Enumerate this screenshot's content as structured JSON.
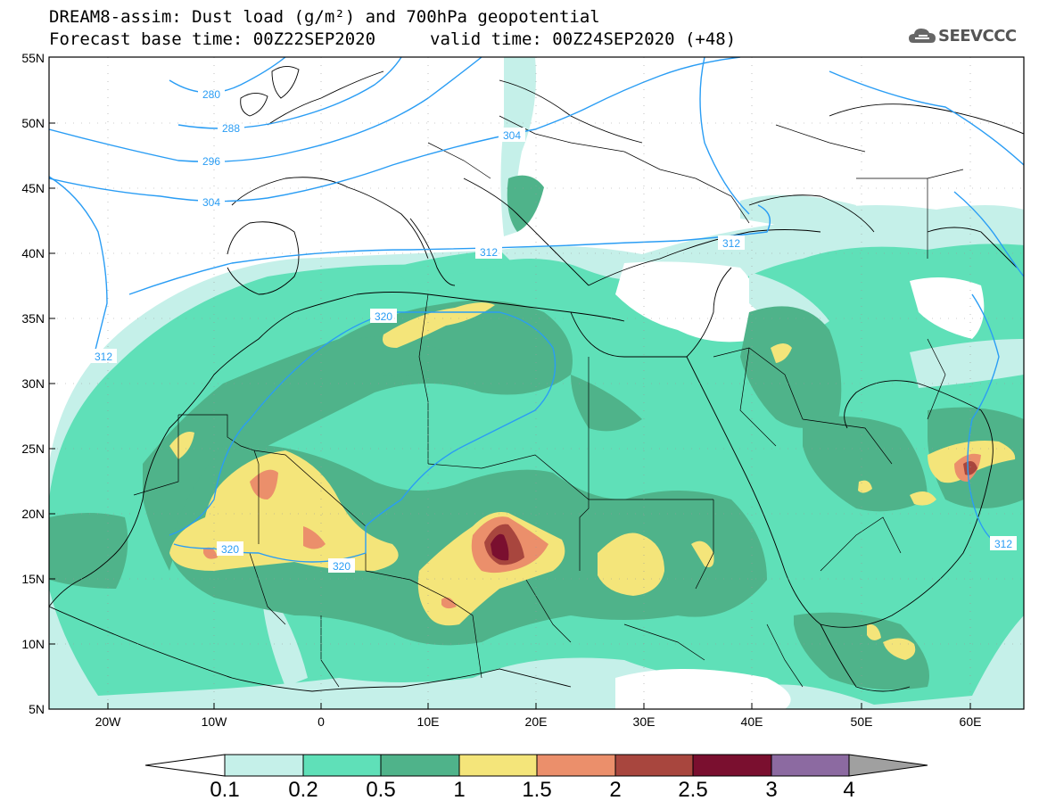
{
  "title": {
    "line1": "DREAM8-assim: Dust load (g/m²) and 700hPa geopotential",
    "line2_left": "Forecast base time: 00Z22SEP2020",
    "line2_right": "valid time: 00Z24SEP2020 (+48)"
  },
  "logo": {
    "text": "SEEVCCC",
    "icon": "cloud-logo-icon"
  },
  "axes": {
    "lat_labels": [
      "55N",
      "50N",
      "45N",
      "40N",
      "35N",
      "30N",
      "25N",
      "20N",
      "15N",
      "10N",
      "5N"
    ],
    "lon_labels": [
      "20W",
      "10W",
      "0",
      "10E",
      "20E",
      "30E",
      "40E",
      "50E",
      "60E"
    ],
    "lat_range": [
      5,
      55
    ],
    "lon_range": [
      -25,
      65
    ]
  },
  "contour_labels": [
    "280",
    "288",
    "296",
    "304",
    "304",
    "312",
    "312",
    "312",
    "320",
    "320",
    "320",
    "312"
  ],
  "colorbar": {
    "ticks": [
      "0.1",
      "0.2",
      "0.5",
      "1",
      "1.5",
      "2",
      "2.5",
      "3",
      "4"
    ],
    "colors": [
      "#ffffff",
      "#c5f0e9",
      "#5fe0b8",
      "#4fb38a",
      "#f4e57a",
      "#eb8f6b",
      "#a8463e",
      "#7a0f2f",
      "#8c6aa1",
      "#a0a0a0"
    ]
  },
  "colors": {
    "contour": "#2a9df4",
    "light": "#c5f0e9",
    "mid": "#5fe0b8",
    "dark": "#4fb38a",
    "yellow": "#f4e57a",
    "orange": "#eb8f6b",
    "brown": "#a8463e",
    "maroon": "#7a0f2f"
  }
}
